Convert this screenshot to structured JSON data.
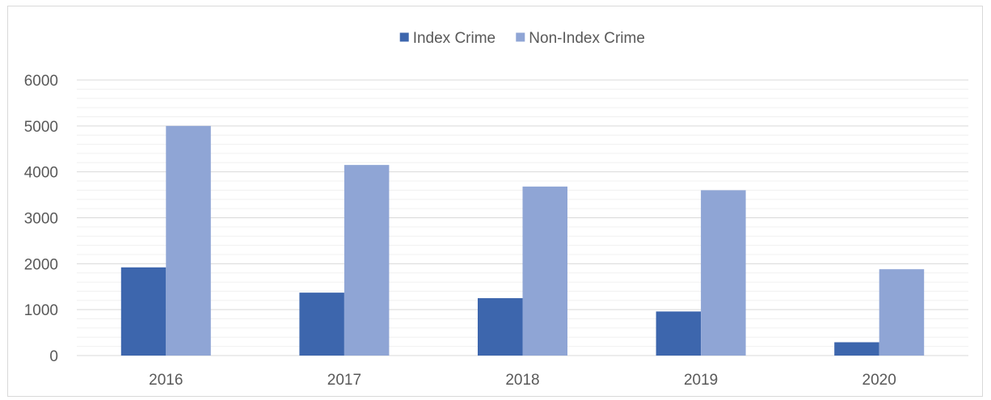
{
  "chart_data": {
    "type": "bar",
    "title": "",
    "xlabel": "",
    "ylabel": "",
    "categories": [
      "2016",
      "2017",
      "2018",
      "2019",
      "2020"
    ],
    "series": [
      {
        "name": "Index Crime",
        "color": "#3d66ad",
        "values": [
          1920,
          1370,
          1250,
          960,
          290
        ]
      },
      {
        "name": "Non-Index Crime",
        "color": "#8fa5d5",
        "values": [
          5000,
          4150,
          3680,
          3600,
          1880
        ]
      }
    ],
    "ylim": [
      0,
      6000
    ],
    "yticks": [
      "0",
      "1000",
      "2000",
      "3000",
      "4000",
      "5000",
      "6000"
    ],
    "major_grid": true,
    "minor_grid": true,
    "legend_position": "top-center"
  }
}
